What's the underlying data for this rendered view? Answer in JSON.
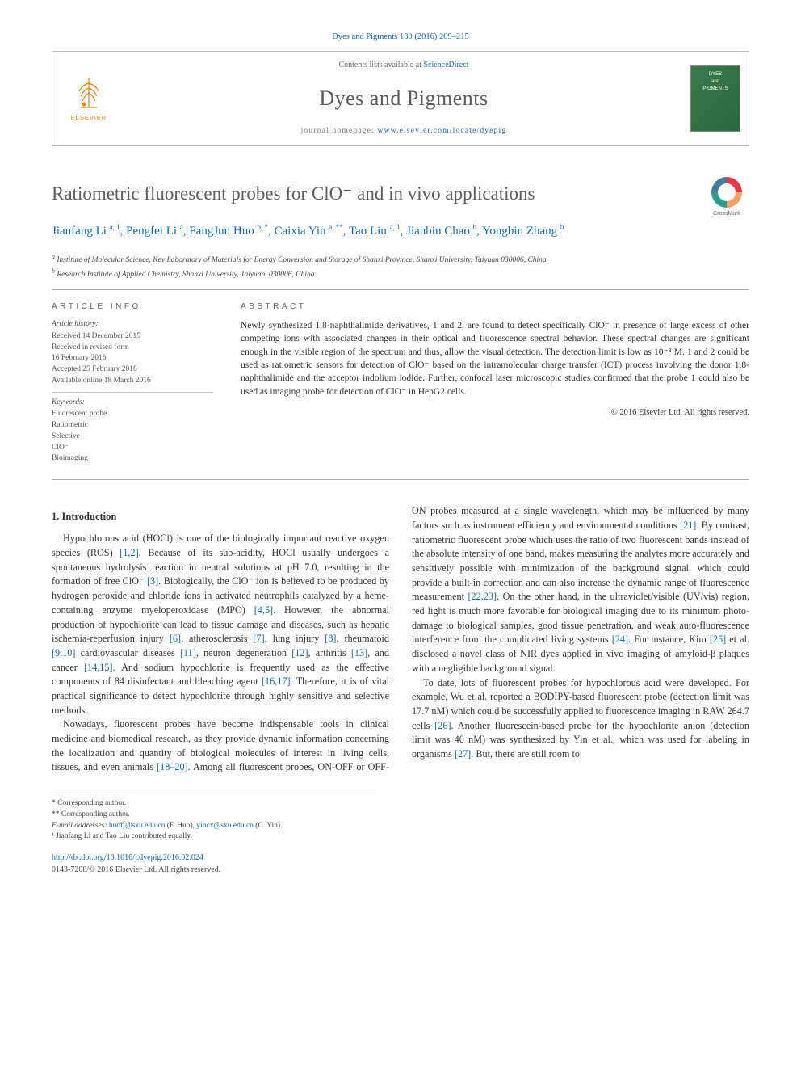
{
  "citation": "Dyes and Pigments 130 (2016) 209–215",
  "header": {
    "contents_prefix": "Contents lists available at ",
    "contents_link": "ScienceDirect",
    "journal": "Dyes and Pigments",
    "homepage_prefix": "journal homepage: ",
    "homepage_url": "www.elsevier.com/locate/dyepig",
    "publisher_label": "ELSEVIER",
    "cover_text_top": "DYES",
    "cover_text_mid": "and",
    "cover_text_bot": "PIGMENTS"
  },
  "title": "Ratiometric fluorescent probes for ClO⁻ and in vivo applications",
  "crossmark_label": "CrossMark",
  "authors": [
    {
      "name": "Jianfang Li",
      "aff": "a, 1"
    },
    {
      "name": "Pengfei Li",
      "aff": "a"
    },
    {
      "name": "FangJun Huo",
      "aff": "b, *"
    },
    {
      "name": "Caixia Yin",
      "aff": "a, **"
    },
    {
      "name": "Tao Liu",
      "aff": "a, 1"
    },
    {
      "name": "Jianbin Chao",
      "aff": "b"
    },
    {
      "name": "Yongbin Zhang",
      "aff": "b"
    }
  ],
  "affiliations": {
    "a": "Institute of Molecular Science, Key Laboratory of Materials for Energy Conversion and Storage of Shanxi Province, Shanxi University, Taiyuan 030006, China",
    "b": "Research Institute of Applied Chemistry, Shanxi University, Taiyuan, 030006, China"
  },
  "article_info": {
    "heading": "ARTICLE INFO",
    "history_label": "Article history:",
    "history": [
      "Received 14 December 2015",
      "Received in revised form",
      "16 February 2016",
      "Accepted 25 February 2016",
      "Available online 18 March 2016"
    ],
    "keywords_label": "Keywords:",
    "keywords": [
      "Fluorescent probe",
      "Ratiometric",
      "Selective",
      "ClO⁻",
      "Bioimaging"
    ]
  },
  "abstract": {
    "heading": "ABSTRACT",
    "text": "Newly synthesized 1,8-naphthalimide derivatives, 1 and 2, are found to detect specifically ClO⁻ in presence of large excess of other competing ions with associated changes in their optical and fluorescence spectral behavior. These spectral changes are significant enough in the visible region of the spectrum and thus, allow the visual detection. The detection limit is low as 10⁻⁸ M. 1 and 2 could be used as ratiometric sensors for detection of ClO⁻ based on the intramolecular charge transfer (ICT) process involving the donor 1,8-naphthalimide and the acceptor indolium iodide. Further, confocal laser microscopic studies confirmed that the probe 1 could also be used as imaging probe for detection of ClO⁻ in HepG2 cells.",
    "copyright": "© 2016 Elsevier Ltd. All rights reserved."
  },
  "section_heading": "1. Introduction",
  "para1": "Hypochlorous acid (HOCl) is one of the biologically important reactive oxygen species (ROS) [1,2]. Because of its sub-acidity, HOCl usually undergoes a spontaneous hydrolysis reaction in neutral solutions at pH 7.0, resulting in the formation of free ClO⁻ [3]. Biologically, the ClO⁻ ion is believed to be produced by hydrogen peroxide and chloride ions in activated neutrophils catalyzed by a heme-containing enzyme myeloperoxidase (MPO) [4,5]. However, the abnormal production of hypochlorite can lead to tissue damage and diseases, such as hepatic ischemia-reperfusion injury [6], atherosclerosis [7], lung injury [8], rheumatoid [9,10] cardiovascular diseases [11], neuron degeneration [12], arthritis [13], and cancer [14,15]. And sodium hypochlorite is frequently used as the effective components of 84 disinfectant and bleaching agent [16,17]. Therefore, it is of vital practical significance to detect hypochlorite through highly sensitive and selective methods.",
  "para2": "Nowadays, fluorescent probes have become indispensable tools in clinical medicine and biomedical research, as they provide dynamic information concerning the localization and quantity of biological molecules of interest in living cells, tissues, and even animals [18–20]. Among all fluorescent probes, ON-OFF or OFF-ON probes measured at a single wavelength, which may be influenced by many factors such as instrument efficiency and environmental conditions [21]. By contrast, ratiometric fluorescent probe which uses the ratio of two fluorescent bands instead of the absolute intensity of one band, makes measuring the analytes more accurately and sensitively possible with minimization of the background signal, which could provide a built-in correction and can also increase the dynamic range of fluorescence measurement [22,23]. On the other hand, in the ultraviolet/visible (UV/vis) region, red light is much more favorable for biological imaging due to its minimum photo-damage to biological samples, good tissue penetration, and weak auto-fluorescence interference from the complicated living systems [24]. For instance, Kim [25] et al. disclosed a novel class of NIR dyes applied in vivo imaging of amyloid-β plaques with a negligible background signal.",
  "para3": "To date, lots of fluorescent probes for hypochlorous acid were developed. For example, Wu et al. reported a BODIPY-based fluorescent probe (detection limit was 17.7 nM) which could be successfully applied to fluorescence imaging in RAW 264.7 cells [26]. Another fluorescein-based probe for the hypochlorite anion (detection limit was 40 nM) was synthesized by Yin et al., which was used for labeling in organisms [27]. But, there are still room to",
  "footer": {
    "corr1": "* Corresponding author.",
    "corr2": "** Corresponding author.",
    "email_label": "E-mail addresses: ",
    "email1": "huofj@sxu.edu.cn",
    "email1_name": " (F. Huo), ",
    "email2": "yincx@sxu.edu.cn",
    "email2_name": " (C. Yin).",
    "note1": "¹ Jianfang Li and Tao Liu contributed equally.",
    "doi": "http://dx.doi.org/10.1016/j.dyepig.2016.02.024",
    "issn_rights": "0143-7208/© 2016 Elsevier Ltd. All rights reserved."
  },
  "colors": {
    "link": "#1068b3",
    "publisher": "#e98300",
    "title_gray": "#5c5c5c",
    "body": "#333333",
    "border": "#aaaaaa",
    "cover_bg": "#3a7a4a"
  },
  "typography": {
    "body_fontsize": 12.2,
    "title_fontsize": 23,
    "journal_fontsize": 26,
    "authors_fontsize": 15,
    "abstract_fontsize": 11.5,
    "footnote_fontsize": 9.5
  },
  "crossmark_colors": [
    "#e63946",
    "#f4a261",
    "#2a9d8f",
    "#457b9d"
  ]
}
